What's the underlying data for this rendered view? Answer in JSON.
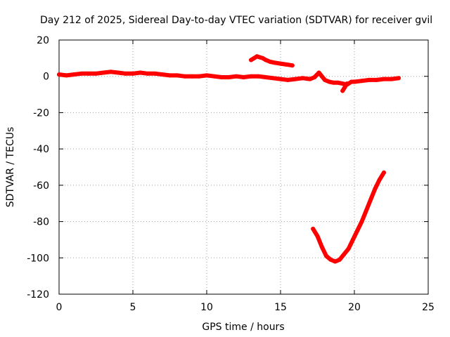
{
  "chart_data": {
    "type": "line",
    "title": "Day 212 of 2025, Sidereal Day-to-day VTEC variation (SDTVAR) for receiver gvil",
    "xlabel": "GPS time / hours",
    "ylabel": "SDTVAR / TECUs",
    "xlim": [
      0,
      25
    ],
    "ylim": [
      -120,
      20
    ],
    "xticks": [
      0,
      5,
      10,
      15,
      20,
      25
    ],
    "yticks": [
      20,
      0,
      -20,
      -40,
      -60,
      -80,
      -100,
      -120
    ],
    "grid": true,
    "legend": "none",
    "series_color": "#ff0000",
    "series": [
      {
        "x": [
          0,
          0.5,
          1,
          1.5,
          2,
          2.5,
          3,
          3.5,
          4,
          4.5,
          5,
          5.5,
          6,
          6.5,
          7,
          7.5,
          8,
          8.5,
          9,
          9.5,
          10,
          10.5,
          11,
          11.5,
          12,
          12.5,
          13,
          13.5,
          14,
          14.5,
          15,
          15.5,
          16,
          16.5,
          17,
          17.3,
          17.6,
          17.8,
          18,
          18.3,
          18.6,
          18.9,
          19.2,
          19.5,
          19.8,
          20,
          20.5,
          21,
          21.5,
          22,
          22.5,
          23
        ],
        "y": [
          1,
          0.5,
          1,
          1.5,
          1.5,
          1.5,
          2,
          2.5,
          2,
          1.5,
          1.5,
          2,
          1.5,
          1.5,
          1,
          0.5,
          0.5,
          0,
          0,
          0,
          0.5,
          0,
          -0.5,
          -0.5,
          0,
          -0.5,
          0,
          0,
          -0.5,
          -1,
          -1.5,
          -2,
          -1.5,
          -1,
          -1.5,
          -0.5,
          2,
          0,
          -2,
          -3,
          -3.5,
          -3.5,
          -4,
          -4.5,
          -3,
          -3,
          -2.5,
          -2,
          -2,
          -1.5,
          -1.5,
          -1
        ]
      },
      {
        "x": [
          13,
          13.2,
          13.4,
          13.6,
          13.8,
          14,
          14.3,
          14.6,
          15,
          15.4,
          15.8
        ],
        "y": [
          9,
          10,
          11,
          10.5,
          10,
          9,
          8,
          7.5,
          7,
          6.5,
          6
        ]
      },
      {
        "x": [
          19.2,
          19.35,
          19.5
        ],
        "y": [
          -8,
          -6,
          -4
        ]
      },
      {
        "x": [
          17.2,
          17.5,
          17.8,
          18.1,
          18.4,
          18.7,
          19,
          19.3,
          19.6,
          19.9,
          20.2,
          20.5,
          20.8,
          21.1,
          21.4,
          21.7,
          22
        ],
        "y": [
          -84,
          -88,
          -94,
          -99,
          -101,
          -102,
          -101,
          -98,
          -95,
          -90,
          -85,
          -80,
          -74,
          -68,
          -62,
          -57,
          -53
        ]
      }
    ]
  }
}
